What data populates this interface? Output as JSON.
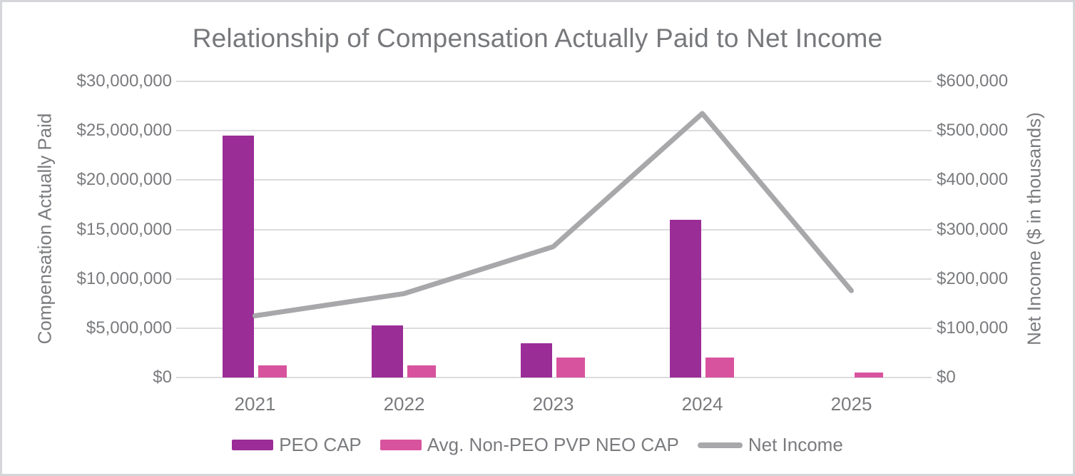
{
  "title": "Relationship of Compensation Actually Paid to Net Income",
  "left_axis": {
    "title": "Compensation Actually Paid",
    "ticks": [
      "$30,000,000",
      "$25,000,000",
      "$20,000,000",
      "$15,000,000",
      "$10,000,000",
      "$5,000,000",
      "$0"
    ]
  },
  "right_axis": {
    "title": "Net Income ($ in thousands)",
    "ticks": [
      "$600,000",
      "$500,000",
      "$400,000",
      "$300,000",
      "$200,000",
      "$100,000",
      "$0"
    ]
  },
  "colors": {
    "peo_cap": "#9A2D96",
    "non_peo_cap": "#D8539E",
    "net_income_line": "#A8A8AB",
    "text_gray": "#7a7b7e",
    "gridline": "#dcdcdf"
  },
  "chart_data": {
    "type": "bar",
    "subtype": "grouped bars with overlaid line, dual y-axes",
    "title": "Relationship of Compensation Actually Paid to Net Income",
    "categories": [
      "2021",
      "2022",
      "2023",
      "2024",
      "2025"
    ],
    "series": [
      {
        "name": "PEO CAP",
        "type": "bar",
        "axis": "left",
        "color": "#9A2D96",
        "values": [
          24500000,
          5250000,
          3500000,
          16000000,
          0
        ]
      },
      {
        "name": "Avg. Non-PEO PVP NEO CAP",
        "type": "bar",
        "axis": "left",
        "color": "#D8539E",
        "values": [
          1200000,
          1250000,
          2000000,
          2050000,
          500000
        ]
      },
      {
        "name": "Net Income",
        "type": "line",
        "axis": "right",
        "color": "#A8A8AB",
        "values": [
          125000,
          170000,
          265000,
          535000,
          176000
        ]
      }
    ],
    "left_ylabel": "Compensation Actually Paid",
    "right_ylabel": "Net Income ($ in thousands)",
    "left_ylim": [
      0,
      30000000
    ],
    "right_ylim": [
      0,
      600000
    ],
    "grid": true,
    "legend_position": "bottom"
  }
}
